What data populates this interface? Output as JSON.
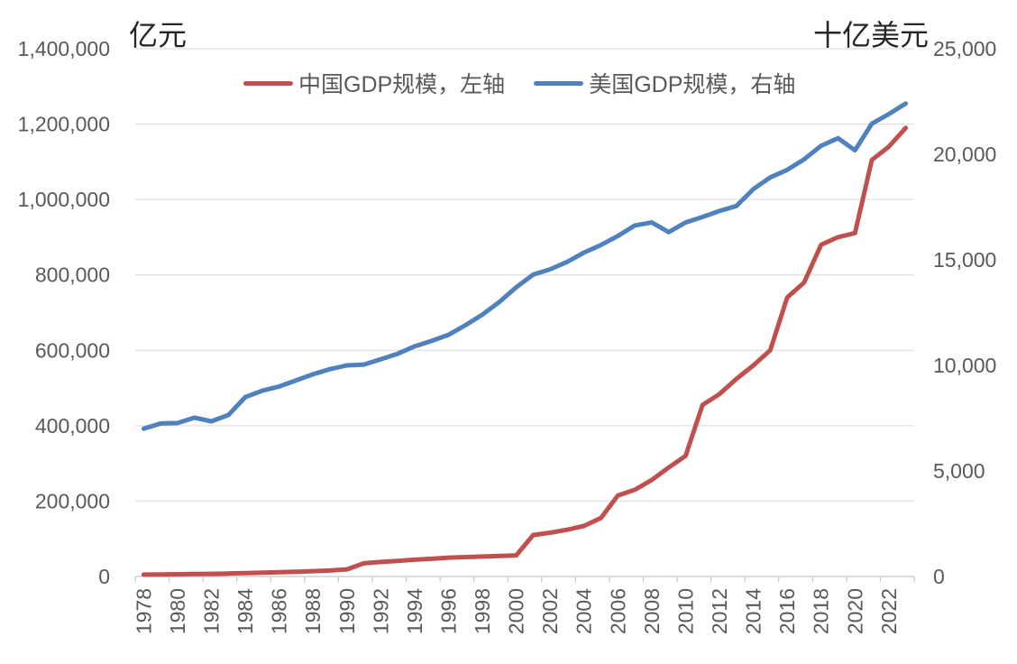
{
  "chart_data": {
    "type": "line",
    "title": "",
    "x": [
      1978,
      1979,
      1980,
      1981,
      1982,
      1983,
      1984,
      1985,
      1986,
      1987,
      1988,
      1989,
      1990,
      1991,
      1992,
      1993,
      1994,
      1995,
      1996,
      1997,
      1998,
      1999,
      2000,
      2001,
      2002,
      2003,
      2004,
      2005,
      2006,
      2007,
      2008,
      2009,
      2010,
      2011,
      2012,
      2013,
      2014,
      2015,
      2016,
      2017,
      2018,
      2019,
      2020,
      2021,
      2022,
      2023
    ],
    "x_tick_labels": [
      "1978",
      "1980",
      "1982",
      "1984",
      "1986",
      "1988",
      "1990",
      "1992",
      "1994",
      "1996",
      "1998",
      "2000",
      "2002",
      "2004",
      "2006",
      "2008",
      "2010",
      "2012",
      "2014",
      "2016",
      "2018",
      "2020",
      "2022"
    ],
    "left_axis": {
      "unit": "亿元",
      "range": [
        0,
        1400000
      ],
      "tick_interval": 200000,
      "tick_labels": [
        "0",
        "200,000",
        "400,000",
        "600,000",
        "800,000",
        "1,000,000",
        "1,200,000",
        "1,400,000"
      ]
    },
    "right_axis": {
      "unit": "十亿美元",
      "range": [
        0,
        25000
      ],
      "tick_interval": 5000,
      "tick_labels": [
        "0",
        "5,000",
        "10,000",
        "15,000",
        "20,000",
        "25,000"
      ]
    },
    "grid": true,
    "legend_position": "top",
    "series": [
      {
        "name": "中国GDP规模，左轴",
        "axis": "left",
        "color": "#C0504D",
        "values": [
          5000,
          5500,
          6000,
          6500,
          7000,
          7800,
          8800,
          10000,
          11200,
          12600,
          14200,
          15800,
          19000,
          35000,
          38500,
          41500,
          44500,
          47000,
          50000,
          51500,
          53000,
          54500,
          56000,
          110000,
          116000,
          124000,
          134000,
          155000,
          215000,
          230000,
          256000,
          289000,
          320000,
          455000,
          484000,
          524000,
          560000,
          600000,
          740000,
          780000,
          880000,
          900000,
          911000,
          1105000,
          1140000,
          1190000
        ]
      },
      {
        "name": "美国GDP规模，右轴",
        "axis": "right",
        "color": "#4F81BD",
        "values": [
          7000,
          7250,
          7270,
          7520,
          7350,
          7650,
          8500,
          8800,
          9000,
          9290,
          9575,
          9820,
          10000,
          10040,
          10290,
          10550,
          10900,
          11160,
          11450,
          11900,
          12400,
          13000,
          13700,
          14300,
          14550,
          14900,
          15340,
          15700,
          16130,
          16630,
          16770,
          16310,
          16770,
          17030,
          17310,
          17550,
          18350,
          18900,
          19260,
          19760,
          20400,
          20760,
          20190,
          21450,
          21900,
          22400
        ]
      }
    ]
  },
  "colors": {
    "grid": "#D9D9D9",
    "axis": "#C6C6C6",
    "tick_text": "#595959",
    "unit_text": "#262626",
    "legend_text": "#595959",
    "background": "#FFFFFF",
    "china_line": "#C0504D",
    "us_line": "#4F81BD"
  }
}
